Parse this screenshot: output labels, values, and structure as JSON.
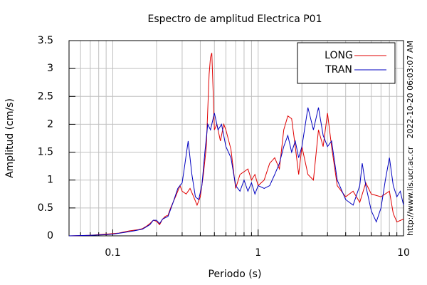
{
  "chart_data": {
    "type": "line",
    "title": "Espectro de amplitud Electrica P01",
    "xlabel": "Periodo (s)",
    "ylabel": "Amplitud (cm/s)",
    "annotations": [
      "2022-10-20 06:03:07 AM",
      "http://www.lis.ucr.ac.cr"
    ],
    "xscale": "log",
    "xlim": [
      0.05,
      10
    ],
    "ylim": [
      0,
      3.5
    ],
    "xticks": [
      0.1,
      1,
      10
    ],
    "xminor": [
      0.06,
      0.07,
      0.08,
      0.09,
      0.2,
      0.3,
      0.4,
      0.5,
      0.6,
      0.7,
      0.8,
      0.9,
      2,
      3,
      4,
      5,
      6,
      7,
      8,
      9
    ],
    "yticks": [
      0,
      0.5,
      1,
      1.5,
      2,
      2.5,
      3,
      3.5
    ],
    "grid": true,
    "legend": "upper right",
    "series": [
      {
        "name": "LONG",
        "color": "#e00000",
        "x": [
          0.05,
          0.06,
          0.07,
          0.08,
          0.09,
          0.1,
          0.11,
          0.12,
          0.13,
          0.14,
          0.15,
          0.16,
          0.17,
          0.18,
          0.19,
          0.2,
          0.21,
          0.22,
          0.23,
          0.24,
          0.25,
          0.27,
          0.29,
          0.3,
          0.32,
          0.34,
          0.36,
          0.38,
          0.4,
          0.42,
          0.44,
          0.46,
          0.47,
          0.48,
          0.49,
          0.5,
          0.52,
          0.55,
          0.58,
          0.6,
          0.65,
          0.7,
          0.75,
          0.8,
          0.85,
          0.9,
          0.95,
          1.0,
          1.1,
          1.2,
          1.3,
          1.4,
          1.5,
          1.6,
          1.7,
          1.8,
          1.9,
          2.0,
          2.2,
          2.4,
          2.6,
          2.8,
          3.0,
          3.2,
          3.5,
          4.0,
          4.5,
          5.0,
          5.5,
          6.0,
          7.0,
          8.0,
          8.5,
          9.0,
          10
        ],
        "values": [
          0,
          0.005,
          0.01,
          0.02,
          0.03,
          0.04,
          0.05,
          0.07,
          0.09,
          0.1,
          0.11,
          0.13,
          0.17,
          0.22,
          0.28,
          0.26,
          0.2,
          0.3,
          0.35,
          0.37,
          0.5,
          0.7,
          0.9,
          0.8,
          0.75,
          0.85,
          0.7,
          0.55,
          0.7,
          1.1,
          1.6,
          2.9,
          3.2,
          3.28,
          2.6,
          1.9,
          2.0,
          1.7,
          2.0,
          1.9,
          1.55,
          0.85,
          1.1,
          1.15,
          1.2,
          1.0,
          1.1,
          0.9,
          1.0,
          1.3,
          1.4,
          1.2,
          1.9,
          2.15,
          2.1,
          1.6,
          1.1,
          1.6,
          1.1,
          1.0,
          1.9,
          1.6,
          2.2,
          1.6,
          0.9,
          0.7,
          0.8,
          0.6,
          0.95,
          0.75,
          0.7,
          0.8,
          0.4,
          0.25,
          0.3
        ]
      },
      {
        "name": "TRAN",
        "color": "#0000c0",
        "x": [
          0.05,
          0.07,
          0.09,
          0.1,
          0.12,
          0.14,
          0.16,
          0.18,
          0.19,
          0.2,
          0.21,
          0.22,
          0.24,
          0.26,
          0.28,
          0.3,
          0.31,
          0.33,
          0.35,
          0.37,
          0.39,
          0.41,
          0.43,
          0.45,
          0.47,
          0.5,
          0.53,
          0.56,
          0.6,
          0.65,
          0.7,
          0.75,
          0.8,
          0.85,
          0.9,
          0.95,
          1.0,
          1.1,
          1.2,
          1.3,
          1.4,
          1.5,
          1.6,
          1.7,
          1.8,
          1.9,
          2.0,
          2.2,
          2.4,
          2.6,
          2.8,
          3.0,
          3.2,
          3.5,
          4.0,
          4.5,
          5.0,
          5.2,
          5.5,
          6.0,
          6.5,
          7.0,
          7.5,
          8.0,
          8.5,
          9.0,
          9.5,
          10
        ],
        "values": [
          0,
          0.01,
          0.02,
          0.03,
          0.06,
          0.09,
          0.12,
          0.2,
          0.28,
          0.28,
          0.22,
          0.3,
          0.35,
          0.6,
          0.85,
          0.95,
          1.2,
          1.7,
          1.1,
          0.7,
          0.65,
          0.9,
          1.5,
          2.0,
          1.9,
          2.2,
          1.9,
          2.0,
          1.6,
          1.4,
          0.9,
          0.8,
          1.0,
          0.8,
          0.95,
          0.75,
          0.9,
          0.85,
          0.9,
          1.1,
          1.3,
          1.6,
          1.8,
          1.5,
          1.7,
          1.4,
          1.6,
          2.3,
          1.9,
          2.3,
          1.8,
          1.6,
          1.7,
          1.0,
          0.65,
          0.55,
          0.9,
          1.3,
          0.9,
          0.45,
          0.25,
          0.5,
          1.0,
          1.4,
          0.9,
          0.7,
          0.8,
          0.55
        ]
      }
    ]
  }
}
